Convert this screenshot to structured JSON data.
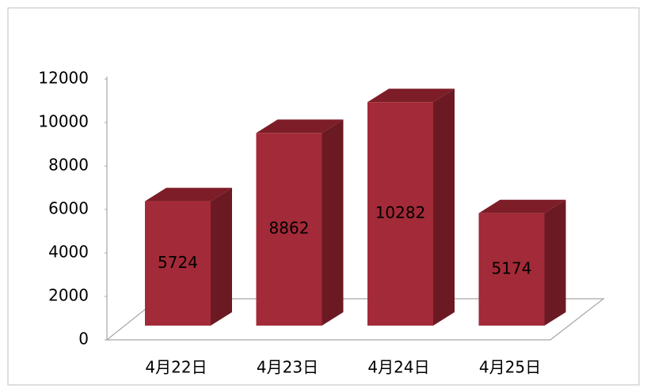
{
  "chart_data": {
    "type": "bar3d",
    "categories": [
      "4月22日",
      "4月23日",
      "4月24日",
      "4月25日"
    ],
    "values": [
      5724,
      8862,
      10282,
      5174
    ],
    "color": "#a32a38",
    "ylim": [
      0,
      12000
    ],
    "yticks": [
      0,
      2000,
      4000,
      6000,
      8000,
      10000,
      12000
    ]
  }
}
